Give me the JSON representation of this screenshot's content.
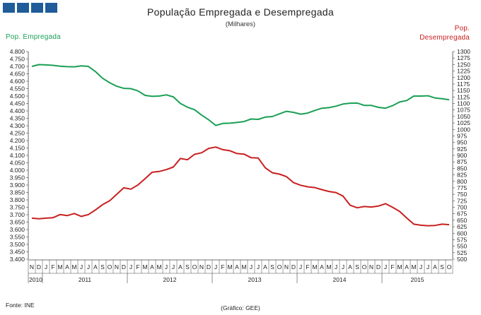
{
  "header": {
    "logo_name": "gee-logo",
    "title": "População Empregada e Desempregada",
    "subtitle": "(Milhares)"
  },
  "labels": {
    "left_axis": "Pop. Empregada",
    "right_axis_line1": "Pop.",
    "right_axis_line2": "Desempregada"
  },
  "footer": {
    "source": "Fonte: INE",
    "credit": "(Gráfico: GEE)"
  },
  "colors": {
    "employed": "#1a9f55",
    "unemployed": "#c8201f",
    "logo": "#1f5c99"
  },
  "chart_data": {
    "type": "line",
    "title": "População Empregada e Desempregada",
    "subtitle": "(Milhares)",
    "months": [
      "N",
      "D",
      "J",
      "F",
      "M",
      "A",
      "M",
      "J",
      "J",
      "A",
      "S",
      "O",
      "N",
      "D",
      "J",
      "F",
      "M",
      "A",
      "M",
      "J",
      "J",
      "A",
      "S",
      "O",
      "N",
      "D",
      "J",
      "F",
      "M",
      "A",
      "M",
      "J",
      "J",
      "A",
      "S",
      "O",
      "N",
      "D",
      "J",
      "F",
      "M",
      "A",
      "M",
      "J",
      "J",
      "A",
      "S",
      "O",
      "N",
      "D",
      "J",
      "F",
      "M",
      "A",
      "M",
      "J",
      "J",
      "A",
      "S",
      "O"
    ],
    "years": [
      {
        "label": "2010",
        "start": 0,
        "count": 2
      },
      {
        "label": "2011",
        "start": 2,
        "count": 12
      },
      {
        "label": "2012",
        "start": 14,
        "count": 12
      },
      {
        "label": "2013",
        "start": 26,
        "count": 12
      },
      {
        "label": "2014",
        "start": 38,
        "count": 12
      },
      {
        "label": "2015",
        "start": 50,
        "count": 10
      }
    ],
    "left_axis": {
      "label": "Pop. Empregada",
      "min": 3400,
      "max": 4800,
      "step": 50
    },
    "right_axis": {
      "label": "Pop. Desempregada",
      "min": 500,
      "max": 1300,
      "step": 25
    },
    "series": [
      {
        "name": "Pop. Empregada",
        "axis": "left",
        "values": [
          4700,
          4712,
          4710,
          4707,
          4701,
          4698,
          4697,
          4704,
          4700,
          4665,
          4620,
          4590,
          4566,
          4552,
          4550,
          4535,
          4505,
          4498,
          4500,
          4508,
          4495,
          4450,
          4425,
          4408,
          4372,
          4340,
          4302,
          4315,
          4317,
          4322,
          4328,
          4345,
          4343,
          4358,
          4362,
          4380,
          4397,
          4390,
          4378,
          4385,
          4403,
          4418,
          4422,
          4432,
          4446,
          4452,
          4453,
          4437,
          4437,
          4424,
          4418,
          4435,
          4460,
          4470,
          4500,
          4500,
          4502,
          4487,
          4482,
          4475
        ]
      },
      {
        "name": "Pop. Desempregada",
        "axis": "right",
        "values": [
          658,
          656,
          658,
          660,
          672,
          668,
          676,
          665,
          672,
          690,
          710,
          725,
          750,
          775,
          770,
          786,
          810,
          835,
          838,
          845,
          855,
          888,
          883,
          904,
          910,
          927,
          932,
          922,
          918,
          907,
          905,
          891,
          890,
          852,
          833,
          828,
          818,
          795,
          785,
          779,
          776,
          768,
          761,
          757,
          743,
          708,
          698,
          703,
          701,
          705,
          714,
          700,
          684,
          659,
          635,
          631,
          629,
          630,
          635,
          633
        ]
      }
    ]
  }
}
